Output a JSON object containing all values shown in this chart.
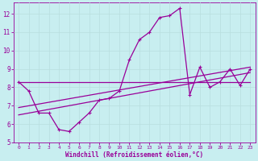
{
  "xlabel": "Windchill (Refroidissement éolien,°C)",
  "bg_color": "#c8eef0",
  "line_color": "#990099",
  "grid_color": "#aadddd",
  "xlim": [
    -0.5,
    23.5
  ],
  "ylim": [
    5,
    12.6
  ],
  "yticks": [
    5,
    6,
    7,
    8,
    9,
    10,
    11,
    12
  ],
  "xticks": [
    0,
    1,
    2,
    3,
    4,
    5,
    6,
    7,
    8,
    9,
    10,
    11,
    12,
    13,
    14,
    15,
    16,
    17,
    18,
    19,
    20,
    21,
    22,
    23
  ],
  "y_data": [
    8.3,
    7.8,
    6.6,
    6.6,
    5.7,
    5.6,
    6.1,
    6.6,
    7.3,
    7.4,
    7.8,
    9.5,
    10.6,
    11.0,
    11.8,
    11.9,
    12.3,
    7.6,
    9.1,
    8.0,
    8.3,
    9.0,
    8.1,
    9.0
  ],
  "flat_line": [
    8.3,
    8.3
  ],
  "flat_line_x": [
    0,
    23
  ],
  "reg_line1_x": [
    0,
    23
  ],
  "reg_line1_y": [
    6.5,
    8.8
  ],
  "reg_line2_x": [
    0,
    23
  ],
  "reg_line2_y": [
    6.9,
    9.1
  ]
}
